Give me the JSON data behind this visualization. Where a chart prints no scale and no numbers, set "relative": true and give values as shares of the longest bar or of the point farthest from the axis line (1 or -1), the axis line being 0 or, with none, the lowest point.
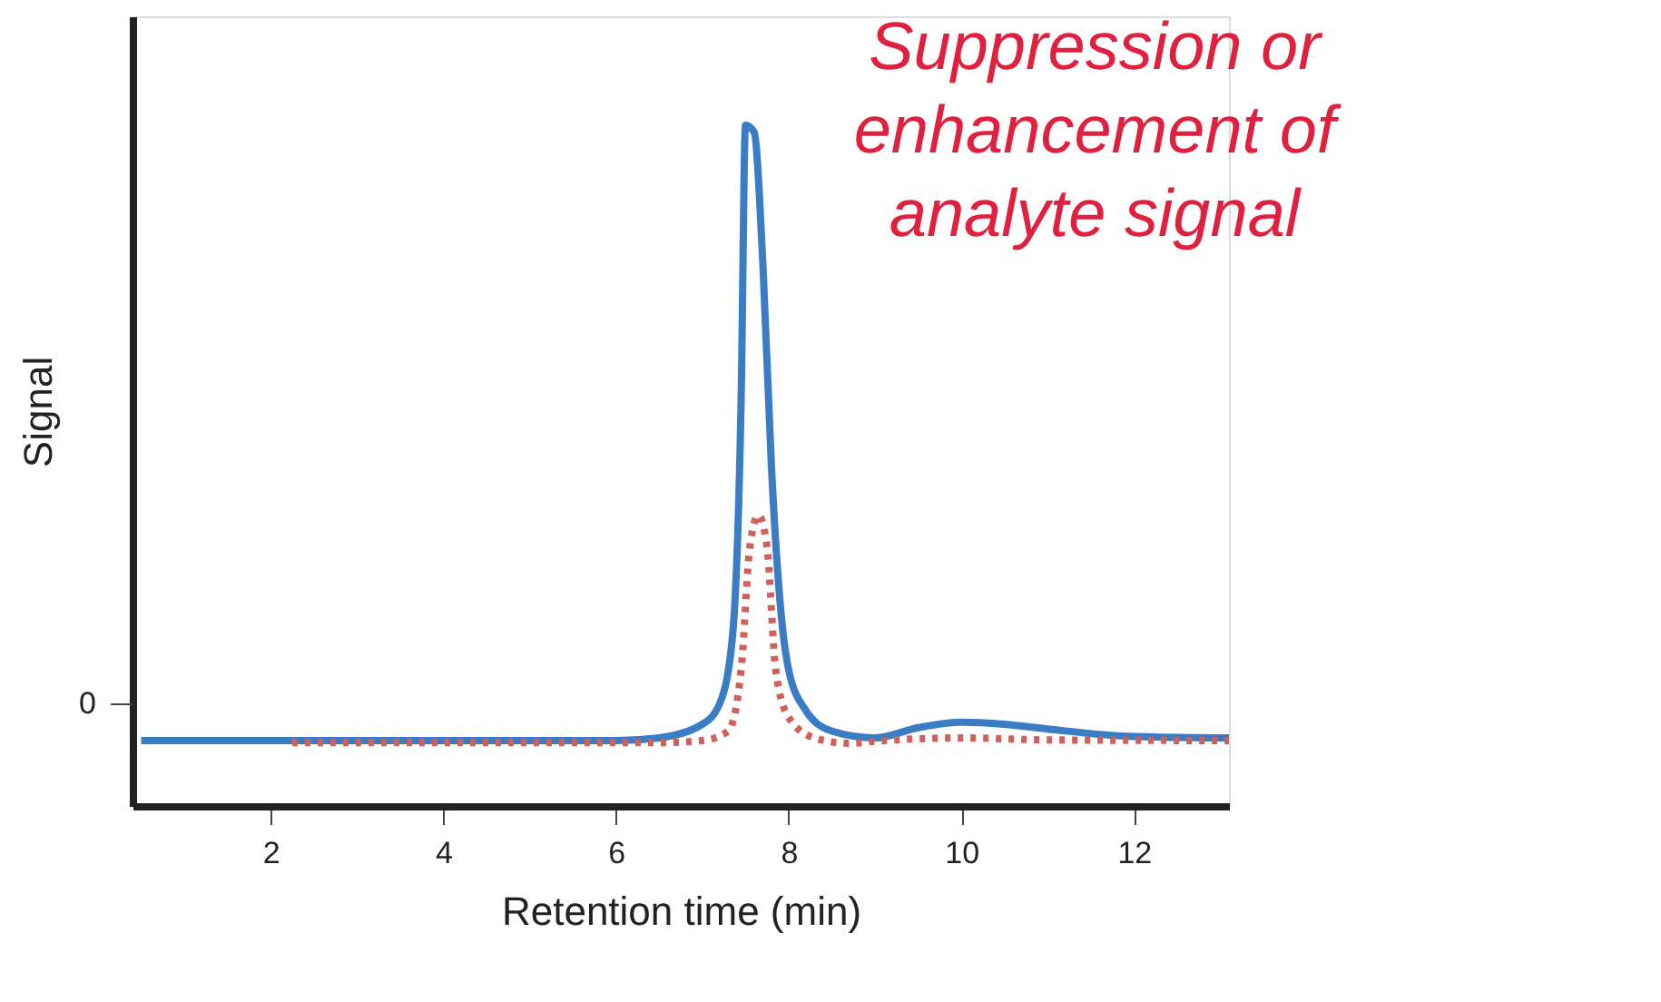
{
  "chart_data": {
    "type": "line",
    "relative": true,
    "xlabel": "Retention time (min)",
    "ylabel": "Signal",
    "xlim": [
      0.4,
      13.1
    ],
    "xticks": [
      2,
      4,
      6,
      8,
      10,
      12
    ],
    "grid": false,
    "marker": "none",
    "annotations": [
      "Suppression or enhancement of analyte signal",
      "0"
    ],
    "series": [
      {
        "color": "#3a7dc4",
        "line_style": "solid",
        "x": [
          0.5,
          6,
          6.5,
          7,
          7.2,
          7.35,
          7.45,
          7.5,
          7.6,
          7.7,
          7.8,
          7.9,
          8.0,
          8.2,
          8.5,
          9,
          9.5,
          10,
          10.5,
          11,
          12,
          13.1
        ],
        "values": [
          0.096,
          0.096,
          0.1,
          0.12,
          0.15,
          0.25,
          0.6,
          1.0,
          0.99,
          0.8,
          0.5,
          0.3,
          0.2,
          0.14,
          0.11,
          0.1,
          0.115,
          0.123,
          0.12,
          0.113,
          0.102,
          0.1
        ]
      },
      {
        "color": "#d0605a",
        "line_style": "dotted",
        "x": [
          2.25,
          6.5,
          7.0,
          7.3,
          7.45,
          7.55,
          7.65,
          7.75,
          7.85,
          8.0,
          8.3,
          8.7,
          9,
          10,
          11,
          13.1
        ],
        "values": [
          0.093,
          0.093,
          0.096,
          0.11,
          0.2,
          0.38,
          0.427,
          0.38,
          0.2,
          0.13,
          0.1,
          0.092,
          0.095,
          0.1,
          0.097,
          0.096
        ]
      }
    ]
  }
}
